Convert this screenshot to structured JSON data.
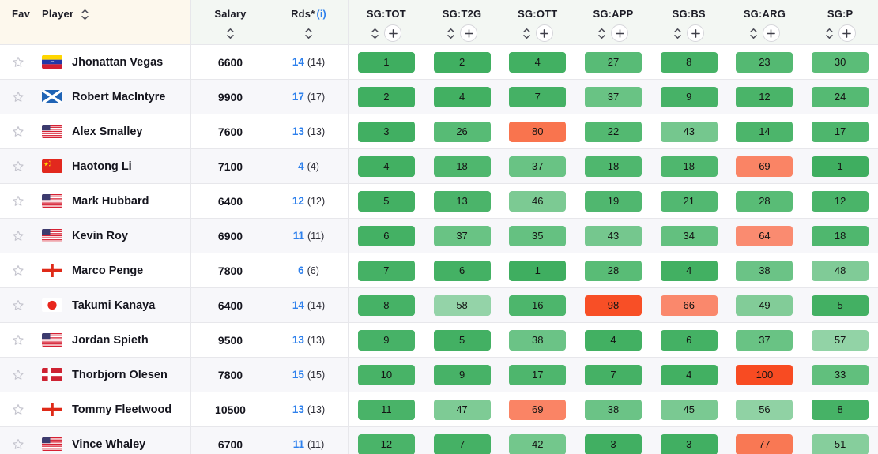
{
  "table": {
    "columns": {
      "fav": "Fav",
      "player": "Player",
      "salary": "Salary",
      "rds": "Rds*",
      "rds_info": "(i)",
      "sg": [
        "SG:TOT",
        "SG:T2G",
        "SG:OTT",
        "SG:APP",
        "SG:BS",
        "SG:ARG",
        "SG:P"
      ]
    },
    "players": [
      {
        "name": "Jhonattan Vegas",
        "country": "venezuela",
        "salary": "6600",
        "rds": "14",
        "rds_paren": "(14)",
        "sg": [
          1,
          2,
          4,
          27,
          8,
          23,
          30
        ]
      },
      {
        "name": "Robert MacIntyre",
        "country": "scotland",
        "salary": "9900",
        "rds": "17",
        "rds_paren": "(17)",
        "sg": [
          2,
          4,
          7,
          37,
          9,
          12,
          24
        ]
      },
      {
        "name": "Alex Smalley",
        "country": "usa",
        "salary": "7600",
        "rds": "13",
        "rds_paren": "(13)",
        "sg": [
          3,
          26,
          80,
          22,
          43,
          14,
          17
        ]
      },
      {
        "name": "Haotong Li",
        "country": "china",
        "salary": "7100",
        "rds": "4",
        "rds_paren": "(4)",
        "sg": [
          4,
          18,
          37,
          18,
          18,
          69,
          1
        ]
      },
      {
        "name": "Mark Hubbard",
        "country": "usa",
        "salary": "6400",
        "rds": "12",
        "rds_paren": "(12)",
        "sg": [
          5,
          13,
          46,
          19,
          21,
          28,
          12
        ]
      },
      {
        "name": "Kevin Roy",
        "country": "usa",
        "salary": "6900",
        "rds": "11",
        "rds_paren": "(11)",
        "sg": [
          6,
          37,
          35,
          43,
          34,
          64,
          18
        ]
      },
      {
        "name": "Marco Penge",
        "country": "england",
        "salary": "7800",
        "rds": "6",
        "rds_paren": "(6)",
        "sg": [
          7,
          6,
          1,
          28,
          4,
          38,
          48
        ]
      },
      {
        "name": "Takumi Kanaya",
        "country": "japan",
        "salary": "6400",
        "rds": "14",
        "rds_paren": "(14)",
        "sg": [
          8,
          58,
          16,
          98,
          66,
          49,
          5
        ]
      },
      {
        "name": "Jordan Spieth",
        "country": "usa",
        "salary": "9500",
        "rds": "13",
        "rds_paren": "(13)",
        "sg": [
          9,
          5,
          38,
          4,
          6,
          37,
          57
        ]
      },
      {
        "name": "Thorbjorn Olesen",
        "country": "denmark",
        "salary": "7800",
        "rds": "15",
        "rds_paren": "(15)",
        "sg": [
          10,
          9,
          17,
          7,
          4,
          100,
          33
        ]
      },
      {
        "name": "Tommy Fleetwood",
        "country": "england",
        "salary": "10500",
        "rds": "13",
        "rds_paren": "(13)",
        "sg": [
          11,
          47,
          69,
          38,
          45,
          56,
          8
        ]
      },
      {
        "name": "Vince Whaley",
        "country": "usa",
        "salary": "6700",
        "rds": "11",
        "rds_paren": "(11)",
        "sg": [
          12,
          7,
          42,
          3,
          3,
          77,
          51
        ]
      }
    ]
  },
  "colors": {
    "header_bg_left": "#fdf8ed",
    "header_bg_right": "#f3f7f3",
    "row_alt_bg": "#f7f7fa",
    "border": "#e7e7eb",
    "link_blue": "#2e80ec",
    "badge_text": "#141414",
    "badge_scale": [
      {
        "value": 1,
        "color": "#3fae60"
      },
      {
        "value": 30,
        "color": "#5bbd78"
      },
      {
        "value": 60,
        "color": "#98d5ab"
      },
      {
        "value": 62,
        "color": "#fa8e74"
      },
      {
        "value": 80,
        "color": "#f9744e"
      },
      {
        "value": 100,
        "color": "#f84b22"
      }
    ]
  }
}
